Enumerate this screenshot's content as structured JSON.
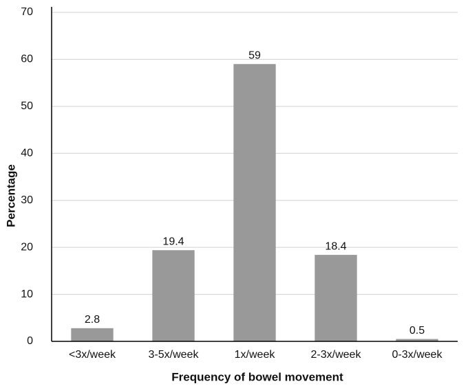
{
  "chart_data": {
    "type": "bar",
    "x_label": "Frequency of bowel movement",
    "y_label": "Percentage",
    "categories": [
      "<3x/week",
      "3-5x/week",
      "1x/week",
      "2-3x/week",
      "0-3x/week"
    ],
    "values": [
      2.8,
      19.4,
      59,
      18.4,
      0.5
    ],
    "color": "#999999",
    "ylim": [
      0,
      70
    ],
    "yticks": [
      0,
      10,
      20,
      30,
      40,
      50,
      60,
      70
    ],
    "grid": true
  }
}
